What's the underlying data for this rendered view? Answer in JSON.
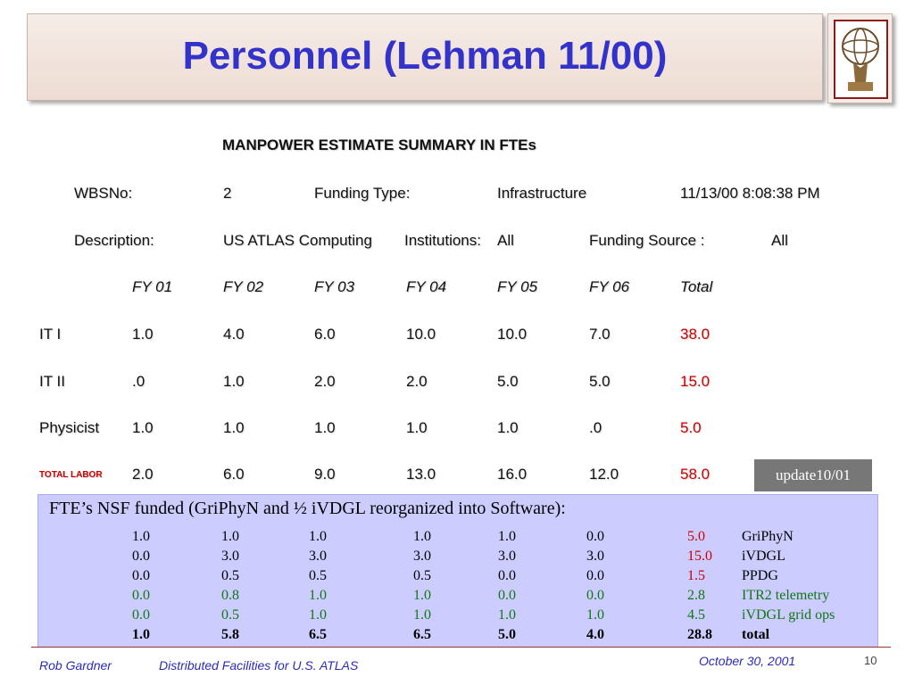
{
  "title": "Personnel (Lehman 11/00)",
  "summary_title": "MANPOWER ESTIMATE SUMMARY IN FTEs",
  "wbs": {
    "label": "WBSNo:",
    "value": "2",
    "funding_type_label": "Funding Type:",
    "funding_type": "Infrastructure",
    "timestamp": "11/13/00 8:08:38 PM"
  },
  "desc": {
    "label": "Description:",
    "value": "US ATLAS Computing",
    "institutions_label": "Institutions:",
    "institutions": "All",
    "funding_source_label": "Funding Source :",
    "funding_source": "All"
  },
  "columns": [
    "FY 01",
    "FY 02",
    "FY 03",
    "FY 04",
    "FY 05",
    "FY 06",
    "Total"
  ],
  "rows": [
    {
      "label": "IT I",
      "values": [
        "1.0",
        "4.0",
        "6.0",
        "10.0",
        "10.0",
        "7.0",
        "38.0"
      ]
    },
    {
      "label": "IT II",
      "values": [
        ".0",
        "1.0",
        "2.0",
        "2.0",
        "5.0",
        "5.0",
        "15.0"
      ]
    },
    {
      "label": "Physicist",
      "values": [
        "1.0",
        "1.0",
        "1.0",
        "1.0",
        "1.0",
        ".0",
        "5.0"
      ]
    },
    {
      "label": "TOTAL LABOR",
      "values": [
        "2.0",
        "6.0",
        "9.0",
        "13.0",
        "16.0",
        "12.0",
        "58.0"
      ]
    }
  ],
  "update_badge": "update10/01",
  "nsf": {
    "heading": "FTE’s NSF funded (GriPhyN and ½ iVDGL reorganized into Software):",
    "rows": [
      {
        "values": [
          "1.0",
          "1.0",
          "1.0",
          "1.0",
          "1.0",
          "0.0",
          "5.0"
        ],
        "label": "GriPhyN",
        "style": "k"
      },
      {
        "values": [
          "0.0",
          "3.0",
          "3.0",
          "3.0",
          "3.0",
          "3.0",
          "15.0"
        ],
        "label": "iVDGL",
        "style": "k"
      },
      {
        "values": [
          "0.0",
          "0.5",
          "0.5",
          "0.5",
          "0.0",
          "0.0",
          "1.5"
        ],
        "label": "PPDG",
        "style": "k"
      },
      {
        "values": [
          "0.0",
          "0.8",
          "1.0",
          "1.0",
          "0.0",
          "0.0",
          "2.8"
        ],
        "label": "ITR2 telemetry",
        "style": "g"
      },
      {
        "values": [
          "0.0",
          "0.5",
          "1.0",
          "1.0",
          "1.0",
          "1.0",
          "4.5"
        ],
        "label": "iVDGL grid ops",
        "style": "g"
      },
      {
        "values": [
          "1.0",
          "5.8",
          "6.5",
          "6.5",
          "5.0",
          "4.0",
          "28.8"
        ],
        "label": "total",
        "style": "b"
      }
    ]
  },
  "footer": {
    "author": "Rob Gardner",
    "talk": "Distributed Facilities for U.S. ATLAS",
    "date": "October  30, 2001",
    "page": "10"
  }
}
